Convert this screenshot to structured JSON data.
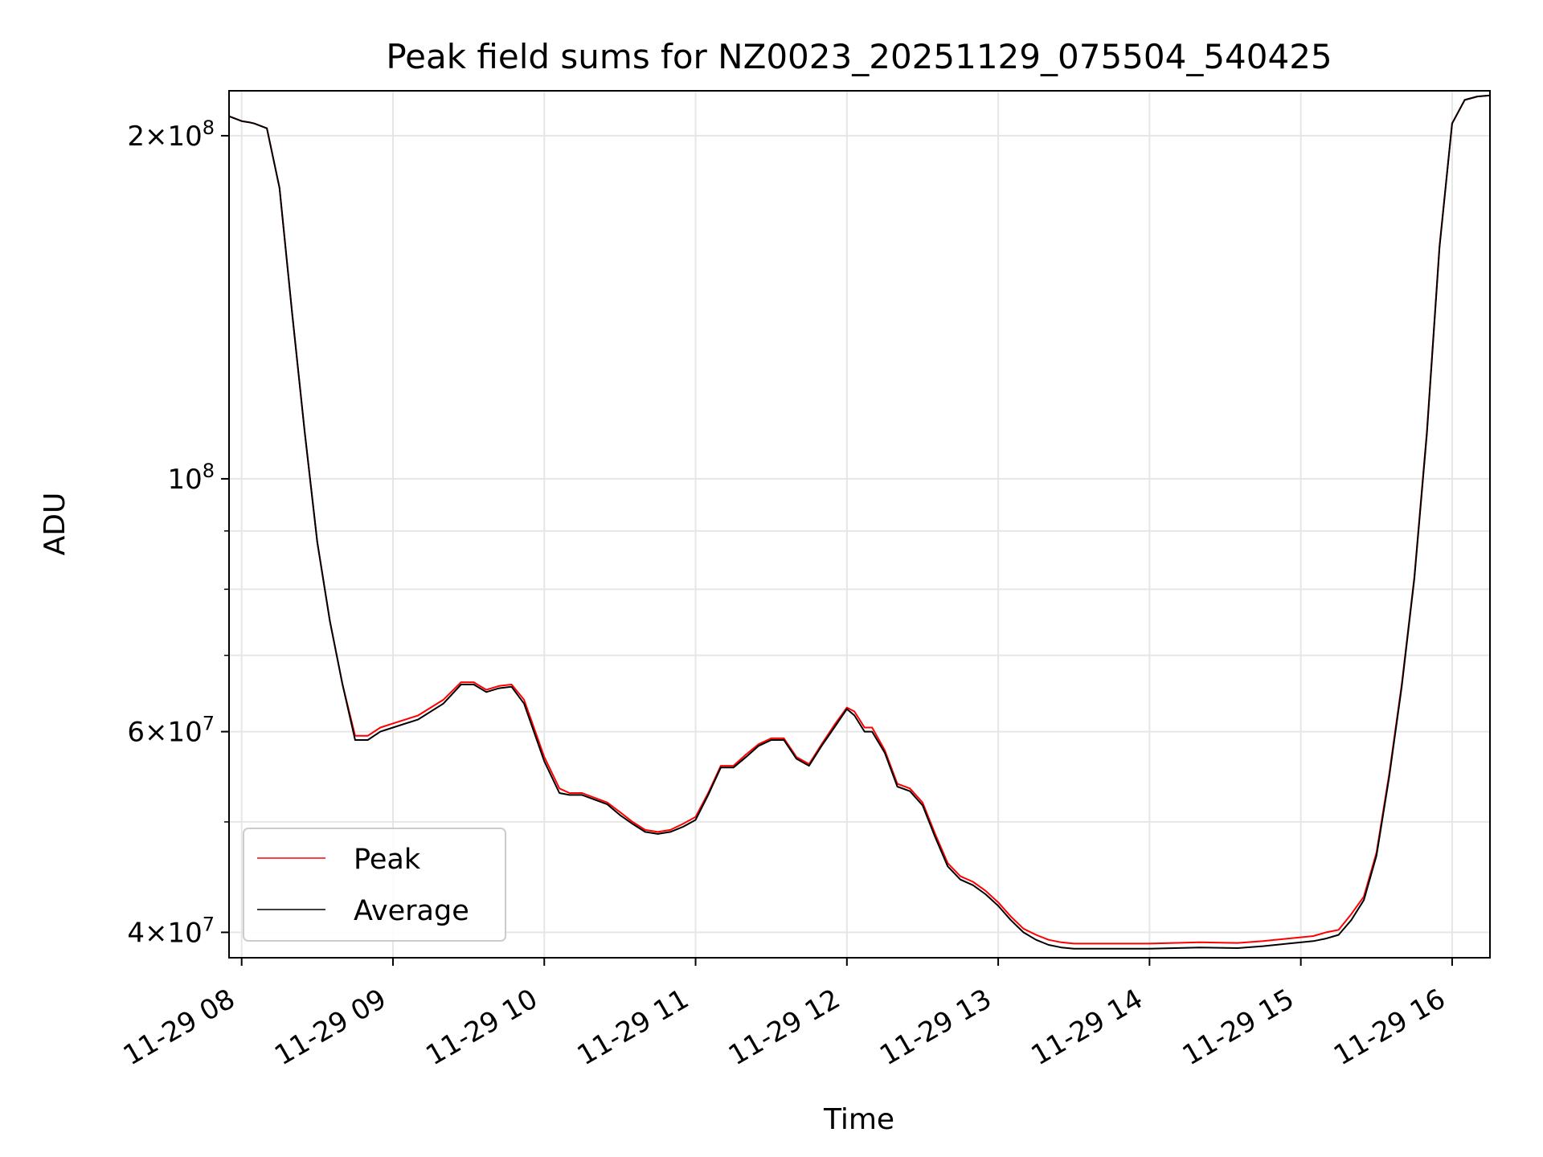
{
  "chart_data": {
    "type": "line",
    "title": "Peak field sums for NZ0023_20251129_075504_540425",
    "xlabel": "Time",
    "ylabel": "ADU",
    "yscale": "log",
    "grid": true,
    "legend_position": "lower-left",
    "x_tick_labels": [
      "11-29 08",
      "11-29 09",
      "11-29 10",
      "11-29 11",
      "11-29 12",
      "11-29 13",
      "11-29 14",
      "11-29 15",
      "11-29 16"
    ],
    "y_tick_labels": [
      {
        "value": 40000000,
        "mantissa": "4",
        "exp": "7"
      },
      {
        "value": 60000000,
        "mantissa": "6",
        "exp": "7"
      },
      {
        "value": 100000000,
        "mantissa": "",
        "exp": "8"
      },
      {
        "value": 200000000,
        "mantissa": "2",
        "exp": "8"
      }
    ],
    "xlim": [
      "2025-11-29 07:55",
      "2025-11-29 16:15"
    ],
    "ylim": [
      38000000,
      219000000
    ],
    "x": [
      "2025-11-29 07:55",
      "2025-11-29 08:00",
      "2025-11-29 08:03",
      "2025-11-29 08:05",
      "2025-11-29 08:10",
      "2025-11-29 08:15",
      "2025-11-29 08:20",
      "2025-11-29 08:25",
      "2025-11-29 08:30",
      "2025-11-29 08:35",
      "2025-11-29 08:40",
      "2025-11-29 08:45",
      "2025-11-29 08:50",
      "2025-11-29 08:55",
      "2025-11-29 09:00",
      "2025-11-29 09:10",
      "2025-11-29 09:20",
      "2025-11-29 09:27",
      "2025-11-29 09:32",
      "2025-11-29 09:37",
      "2025-11-29 09:42",
      "2025-11-29 09:47",
      "2025-11-29 09:52",
      "2025-11-29 10:00",
      "2025-11-29 10:06",
      "2025-11-29 10:10",
      "2025-11-29 10:15",
      "2025-11-29 10:25",
      "2025-11-29 10:30",
      "2025-11-29 10:35",
      "2025-11-29 10:40",
      "2025-11-29 10:45",
      "2025-11-29 10:50",
      "2025-11-29 10:55",
      "2025-11-29 11:00",
      "2025-11-29 11:05",
      "2025-11-29 11:10",
      "2025-11-29 11:15",
      "2025-11-29 11:20",
      "2025-11-29 11:25",
      "2025-11-29 11:30",
      "2025-11-29 11:35",
      "2025-11-29 11:40",
      "2025-11-29 11:45",
      "2025-11-29 11:50",
      "2025-11-29 11:55",
      "2025-11-29 12:00",
      "2025-11-29 12:03",
      "2025-11-29 12:07",
      "2025-11-29 12:10",
      "2025-11-29 12:15",
      "2025-11-29 12:20",
      "2025-11-29 12:25",
      "2025-11-29 12:30",
      "2025-11-29 12:35",
      "2025-11-29 12:40",
      "2025-11-29 12:45",
      "2025-11-29 12:50",
      "2025-11-29 12:55",
      "2025-11-29 13:00",
      "2025-11-29 13:05",
      "2025-11-29 13:10",
      "2025-11-29 13:15",
      "2025-11-29 13:20",
      "2025-11-29 13:25",
      "2025-11-29 13:30",
      "2025-11-29 13:40",
      "2025-11-29 14:00",
      "2025-11-29 14:20",
      "2025-11-29 14:35",
      "2025-11-29 14:45",
      "2025-11-29 14:55",
      "2025-11-29 15:05",
      "2025-11-29 15:10",
      "2025-11-29 15:15",
      "2025-11-29 15:20",
      "2025-11-29 15:25",
      "2025-11-29 15:30",
      "2025-11-29 15:35",
      "2025-11-29 15:40",
      "2025-11-29 15:45",
      "2025-11-29 15:50",
      "2025-11-29 15:55",
      "2025-11-29 16:00",
      "2025-11-29 16:05",
      "2025-11-29 16:10",
      "2025-11-29 16:15"
    ],
    "series": [
      {
        "name": "Peak",
        "color": "#ff0000",
        "values": [
          208000000,
          206000000,
          205500000,
          205000000,
          203000000,
          180000000,
          140000000,
          110000000,
          88000000,
          75000000,
          66000000,
          59500000,
          59500000,
          60500000,
          61000000,
          62000000,
          64000000,
          66300000,
          66300000,
          65300000,
          65800000,
          66000000,
          64000000,
          57000000,
          53500000,
          53000000,
          53000000,
          52000000,
          51000000,
          50000000,
          49200000,
          49000000,
          49200000,
          49800000,
          50500000,
          53000000,
          56000000,
          56000000,
          57300000,
          58500000,
          59200000,
          59200000,
          57000000,
          56200000,
          58500000,
          60800000,
          63000000,
          62500000,
          60500000,
          60500000,
          57800000,
          54000000,
          53500000,
          52000000,
          48800000,
          46000000,
          44800000,
          44300000,
          43500000,
          42500000,
          41300000,
          40300000,
          39800000,
          39400000,
          39200000,
          39100000,
          39100000,
          39100000,
          39200000,
          39150000,
          39300000,
          39500000,
          39700000,
          40000000,
          40200000,
          41500000,
          43000000,
          47000000,
          55000000,
          66000000,
          82000000,
          110000000,
          160000000,
          205000000,
          215000000,
          216500000,
          217000000
        ]
      },
      {
        "name": "Average",
        "color": "#000000",
        "values": [
          208000000,
          206000000,
          205500000,
          205000000,
          203000000,
          180000000,
          140000000,
          110000000,
          88000000,
          75000000,
          66000000,
          59000000,
          59000000,
          60000000,
          60500000,
          61500000,
          63500000,
          66000000,
          66000000,
          65000000,
          65500000,
          65700000,
          63500000,
          56500000,
          53000000,
          52800000,
          52800000,
          51800000,
          50700000,
          49800000,
          49000000,
          48800000,
          49000000,
          49500000,
          50200000,
          52800000,
          55800000,
          55800000,
          57000000,
          58300000,
          59000000,
          59000000,
          56800000,
          56000000,
          58300000,
          60500000,
          62800000,
          62000000,
          60000000,
          60000000,
          57500000,
          53700000,
          53200000,
          51700000,
          48500000,
          45700000,
          44500000,
          44000000,
          43200000,
          42200000,
          41000000,
          40000000,
          39400000,
          39000000,
          38800000,
          38700000,
          38700000,
          38700000,
          38800000,
          38750000,
          38900000,
          39100000,
          39300000,
          39500000,
          39800000,
          41000000,
          42700000,
          46700000,
          54700000,
          65700000,
          81700000,
          109500000,
          159500000,
          205000000,
          215000000,
          216500000,
          217000000
        ]
      }
    ]
  }
}
